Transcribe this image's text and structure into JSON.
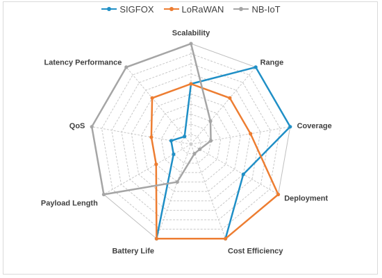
{
  "chart_data": {
    "type": "radar",
    "categories": [
      "Scalability",
      "Range",
      "Coverage",
      "Deployment",
      "Cost Efficiency",
      "Battery Life",
      "Payload Length",
      "QoS",
      "Latency Performance"
    ],
    "scale": [
      0,
      10
    ],
    "grid": true,
    "legend_position": "top",
    "series": [
      {
        "name": "SIGFOX",
        "color": "#1f8fc6",
        "values": [
          6,
          10,
          10,
          6,
          10,
          10,
          2,
          2,
          1
        ]
      },
      {
        "name": "LoRaWAN",
        "color": "#ed7d31",
        "values": [
          6,
          6,
          6,
          10,
          10,
          10,
          4,
          4,
          6
        ]
      },
      {
        "name": "NB-IoT",
        "color": "#a5a5a5",
        "values": [
          10,
          3,
          2,
          1,
          1,
          4,
          10,
          10,
          10
        ]
      }
    ]
  }
}
